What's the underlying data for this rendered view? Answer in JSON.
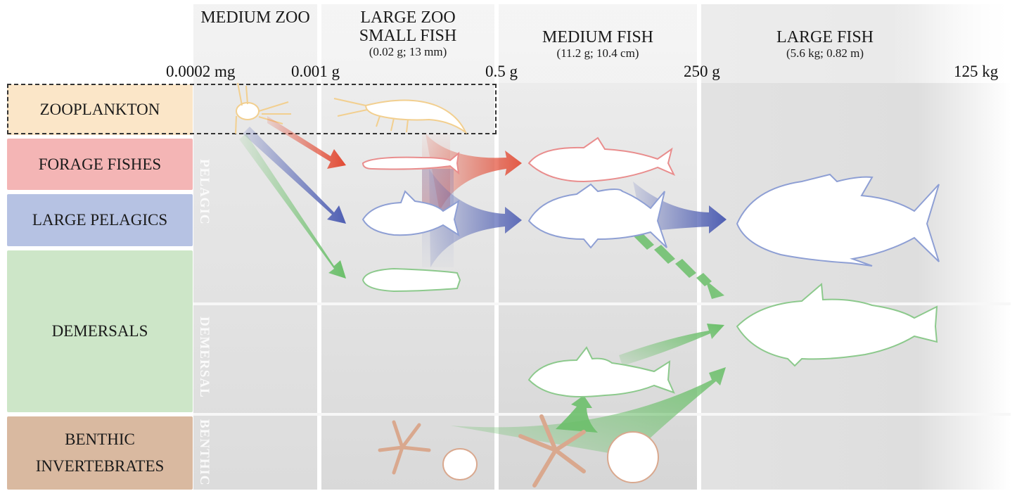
{
  "columns": [
    {
      "title": "MEDIUM ZOO",
      "subtitle": ""
    },
    {
      "title": "LARGE ZOO",
      "title2": "SMALL FISH",
      "subtitle": "(0.02 g; 13 mm)"
    },
    {
      "title": "MEDIUM FISH",
      "subtitle": "(11.2 g; 10.4 cm)"
    },
    {
      "title": "LARGE FISH",
      "subtitle": "(5.6 kg; 0.82 m)"
    }
  ],
  "size_scale": [
    "0.0002 mg",
    "0.001 g",
    "0.5 g",
    "250 g",
    "125 kg"
  ],
  "groups": [
    "ZOOPLANKTON",
    "FORAGE FISHES",
    "LARGE PELAGICS",
    "DEMERSALS",
    "BENTHIC",
    "INVERTEBRATES"
  ],
  "habitats": [
    "PELAGIC",
    "DEMERSAL",
    "BENTHIC"
  ],
  "colors": {
    "zooplankton": "#fbe6c8",
    "forage": "#f4b5b5",
    "pelagic": "#b6c2e3",
    "demersal": "#cde6c8",
    "benthic": "#d9b9a0",
    "red_arrow": "#e24a33",
    "blue_arrow": "#4f5fb3",
    "green_arrow": "#6bbf6a"
  }
}
